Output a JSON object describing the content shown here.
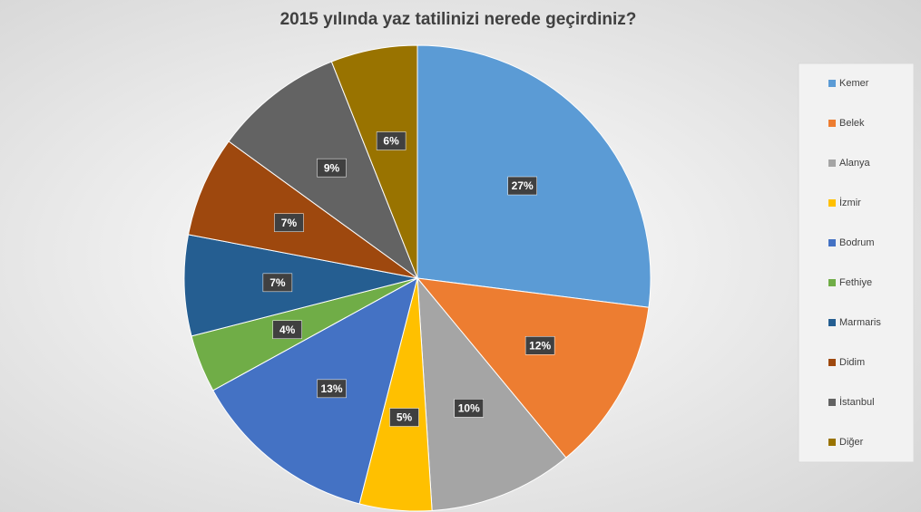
{
  "chart_data": {
    "type": "pie",
    "title": "2015 yılında yaz tatilinizi nerede geçirdiniz?",
    "categories": [
      "Kemer",
      "Belek",
      "Alanya",
      "İzmir",
      "Bodrum",
      "Fethiye",
      "Marmaris",
      "Didim",
      "İstanbul",
      "Diğer"
    ],
    "values": [
      27,
      12,
      10,
      5,
      13,
      4,
      7,
      7,
      9,
      6
    ],
    "value_labels": [
      "27%",
      "12%",
      "10%",
      "5%",
      "13%",
      "4%",
      "7%",
      "7%",
      "9%",
      "6%"
    ],
    "colors": [
      "#5b9bd5",
      "#ed7d31",
      "#a5a5a5",
      "#ffc000",
      "#4472c4",
      "#70ad47",
      "#255e91",
      "#9e480e",
      "#636363",
      "#997300"
    ],
    "legend": "right"
  }
}
